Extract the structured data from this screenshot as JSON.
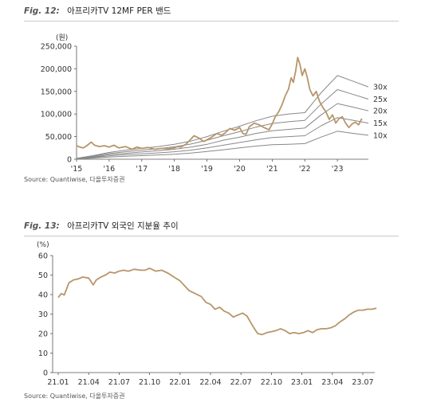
{
  "figures": [
    {
      "label": "Fig. 12:",
      "title": "아프리카TV 12MF PER 밴드",
      "source": "Source: Quantiwise, 다올투자증권"
    },
    {
      "label": "Fig. 13:",
      "title": "아프리카TV 외국인 지분율 추이",
      "source": "Source: Quantiwise, 다올투자증권"
    }
  ],
  "chart_data": [
    {
      "type": "line",
      "title": "아프리카TV 12MF PER 밴드",
      "ylabel": "(원)",
      "ylim": [
        0,
        250000
      ],
      "y_ticks": [
        "0",
        "50,000",
        "100,000",
        "150,000",
        "200,000",
        "250,000"
      ],
      "x_tick_labels": [
        "'15",
        "'16",
        "'17",
        "'18",
        "'19",
        "'20",
        "'21",
        "'22",
        "'23"
      ],
      "xlim": [
        2015.0,
        2023.95
      ],
      "price_color": "#b8956a",
      "band_color": "#888888",
      "series": [
        {
          "name": "30x",
          "x": [
            2015.0,
            2015.5,
            2016.0,
            2016.5,
            2017.0,
            2017.5,
            2018.0,
            2018.5,
            2019.0,
            2019.5,
            2020.0,
            2020.5,
            2021.0,
            2021.5,
            2022.0,
            2022.5,
            2023.0,
            2023.5,
            2023.95
          ],
          "y": [
            2000,
            8000,
            15000,
            20000,
            24000,
            28000,
            33000,
            40000,
            50000,
            62000,
            73000,
            85000,
            95000,
            100000,
            103000,
            147000,
            185000,
            172000,
            160000
          ]
        },
        {
          "name": "25x",
          "x": [
            2015.0,
            2015.5,
            2016.0,
            2016.5,
            2017.0,
            2017.5,
            2018.0,
            2018.5,
            2019.0,
            2019.5,
            2020.0,
            2020.5,
            2021.0,
            2021.5,
            2022.0,
            2022.5,
            2023.0,
            2023.5,
            2023.95
          ],
          "y": [
            1700,
            6500,
            12500,
            16500,
            20000,
            23500,
            27500,
            33500,
            42000,
            52000,
            61000,
            71000,
            79000,
            83000,
            86000,
            122000,
            154000,
            143000,
            133000
          ]
        },
        {
          "name": "20x",
          "x": [
            2015.0,
            2015.5,
            2016.0,
            2016.5,
            2017.0,
            2017.5,
            2018.0,
            2018.5,
            2019.0,
            2019.5,
            2020.0,
            2020.5,
            2021.0,
            2021.5,
            2022.0,
            2022.5,
            2023.0,
            2023.5,
            2023.95
          ],
          "y": [
            1400,
            5000,
            10000,
            13000,
            16000,
            19000,
            22000,
            27000,
            33000,
            42000,
            49000,
            57000,
            63000,
            66000,
            69000,
            98000,
            123000,
            115000,
            107000
          ]
        },
        {
          "name": "15x",
          "x": [
            2015.0,
            2015.5,
            2016.0,
            2016.5,
            2017.0,
            2017.5,
            2018.0,
            2018.5,
            2019.0,
            2019.5,
            2020.0,
            2020.5,
            2021.0,
            2021.5,
            2022.0,
            2022.5,
            2023.0,
            2023.5,
            2023.95
          ],
          "y": [
            1000,
            3700,
            7500,
            10000,
            12000,
            14000,
            16500,
            20000,
            25000,
            31000,
            37000,
            43000,
            48000,
            50000,
            52000,
            74000,
            92000,
            86000,
            80000
          ]
        },
        {
          "name": "10x",
          "x": [
            2015.0,
            2015.5,
            2016.0,
            2016.5,
            2017.0,
            2017.5,
            2018.0,
            2018.5,
            2019.0,
            2019.5,
            2020.0,
            2020.5,
            2021.0,
            2021.5,
            2022.0,
            2022.5,
            2023.0,
            2023.5,
            2023.95
          ],
          "y": [
            700,
            2500,
            5000,
            6500,
            8000,
            9500,
            11000,
            13500,
            17000,
            21000,
            25000,
            29000,
            32000,
            33000,
            34500,
            49000,
            62000,
            57000,
            53000
          ]
        },
        {
          "x": [
            2015.0,
            2015.1,
            2015.2,
            2015.3,
            2015.45,
            2015.55,
            2015.7,
            2015.85,
            2016.0,
            2016.15,
            2016.3,
            2016.5,
            2016.7,
            2016.85,
            2017.0,
            2017.2,
            2017.4,
            2017.6,
            2017.8,
            2018.0,
            2018.1,
            2018.2,
            2018.35,
            2018.45,
            2018.6,
            2018.75,
            2018.9,
            2019.0,
            2019.15,
            2019.3,
            2019.45,
            2019.55,
            2019.7,
            2019.85,
            2020.0,
            2020.1,
            2020.2,
            2020.3,
            2020.45,
            2020.6,
            2020.75,
            2020.9,
            2021.0,
            2021.1,
            2021.2,
            2021.3,
            2021.4,
            2021.5,
            2021.58,
            2021.65,
            2021.72,
            2021.78,
            2021.85,
            2021.92,
            2022.0,
            2022.08,
            2022.15,
            2022.25,
            2022.35,
            2022.45,
            2022.55,
            2022.65,
            2022.75,
            2022.85,
            2022.95,
            2023.05,
            2023.15,
            2023.25,
            2023.35,
            2023.45,
            2023.55,
            2023.65,
            2023.75
          ],
          "y": [
            30000,
            27000,
            25000,
            29000,
            38000,
            31000,
            28000,
            30000,
            27000,
            31000,
            25000,
            28000,
            22000,
            27000,
            24000,
            26000,
            22000,
            24000,
            23000,
            25000,
            28000,
            27000,
            33000,
            40000,
            52000,
            47000,
            39000,
            43000,
            49000,
            57000,
            53000,
            58000,
            68000,
            64000,
            70000,
            57000,
            55000,
            72000,
            80000,
            76000,
            70000,
            65000,
            78000,
            95000,
            105000,
            120000,
            140000,
            155000,
            180000,
            170000,
            195000,
            225000,
            210000,
            185000,
            200000,
            180000,
            155000,
            140000,
            150000,
            128000,
            115000,
            105000,
            88000,
            98000,
            80000,
            90000,
            94000,
            80000,
            70000,
            78000,
            82000,
            76000,
            90000
          ]
        }
      ]
    },
    {
      "type": "line",
      "title": "아프리카TV 외국인 지분율 추이",
      "ylabel": "(%)",
      "ylim": [
        0,
        60
      ],
      "y_ticks": [
        "0",
        "10",
        "20",
        "30",
        "40",
        "50",
        "60"
      ],
      "x_categories": [
        "21.01",
        "21.04",
        "21.07",
        "21.10",
        "22.01",
        "22.04",
        "22.07",
        "22.10",
        "23.01",
        "23.04",
        "23.07"
      ],
      "line_color": "#b8956a",
      "series": [
        {
          "x": [
            0,
            0.1,
            0.2,
            0.35,
            0.5,
            0.65,
            0.8,
            1.0,
            1.15,
            1.25,
            1.4,
            1.55,
            1.7,
            1.85,
            2.0,
            2.15,
            2.3,
            2.5,
            2.7,
            2.85,
            3.0,
            3.2,
            3.4,
            3.6,
            3.8,
            4.0,
            4.15,
            4.3,
            4.5,
            4.7,
            4.85,
            5.0,
            5.15,
            5.3,
            5.45,
            5.6,
            5.75,
            5.9,
            6.05,
            6.2,
            6.4,
            6.55,
            6.7,
            6.85,
            7.0,
            7.15,
            7.3,
            7.45,
            7.6,
            7.75,
            7.9,
            8.05,
            8.2,
            8.35,
            8.5,
            8.65,
            8.8,
            8.95,
            9.1,
            9.25,
            9.4,
            9.55,
            9.7,
            9.85,
            10.0,
            10.15,
            10.3,
            10.45
          ],
          "y": [
            38.5,
            40.5,
            39.8,
            46.0,
            47.5,
            48.0,
            49.0,
            48.5,
            45.0,
            47.5,
            49.0,
            50.0,
            51.5,
            51.0,
            52.0,
            52.5,
            52.0,
            53.0,
            52.5,
            52.5,
            53.5,
            52.0,
            52.5,
            51.0,
            49.0,
            47.0,
            44.5,
            42.0,
            40.5,
            39.0,
            36.0,
            35.0,
            32.5,
            33.5,
            31.5,
            30.5,
            28.5,
            29.5,
            30.5,
            29.0,
            23.5,
            20.0,
            19.5,
            20.5,
            21.0,
            21.5,
            22.5,
            21.5,
            20.0,
            20.5,
            20.0,
            20.5,
            21.5,
            20.5,
            22.0,
            22.5,
            22.5,
            23.0,
            24.0,
            26.0,
            27.5,
            29.5,
            31.0,
            32.0,
            32.0,
            32.5,
            32.5,
            33.0
          ]
        }
      ]
    }
  ]
}
